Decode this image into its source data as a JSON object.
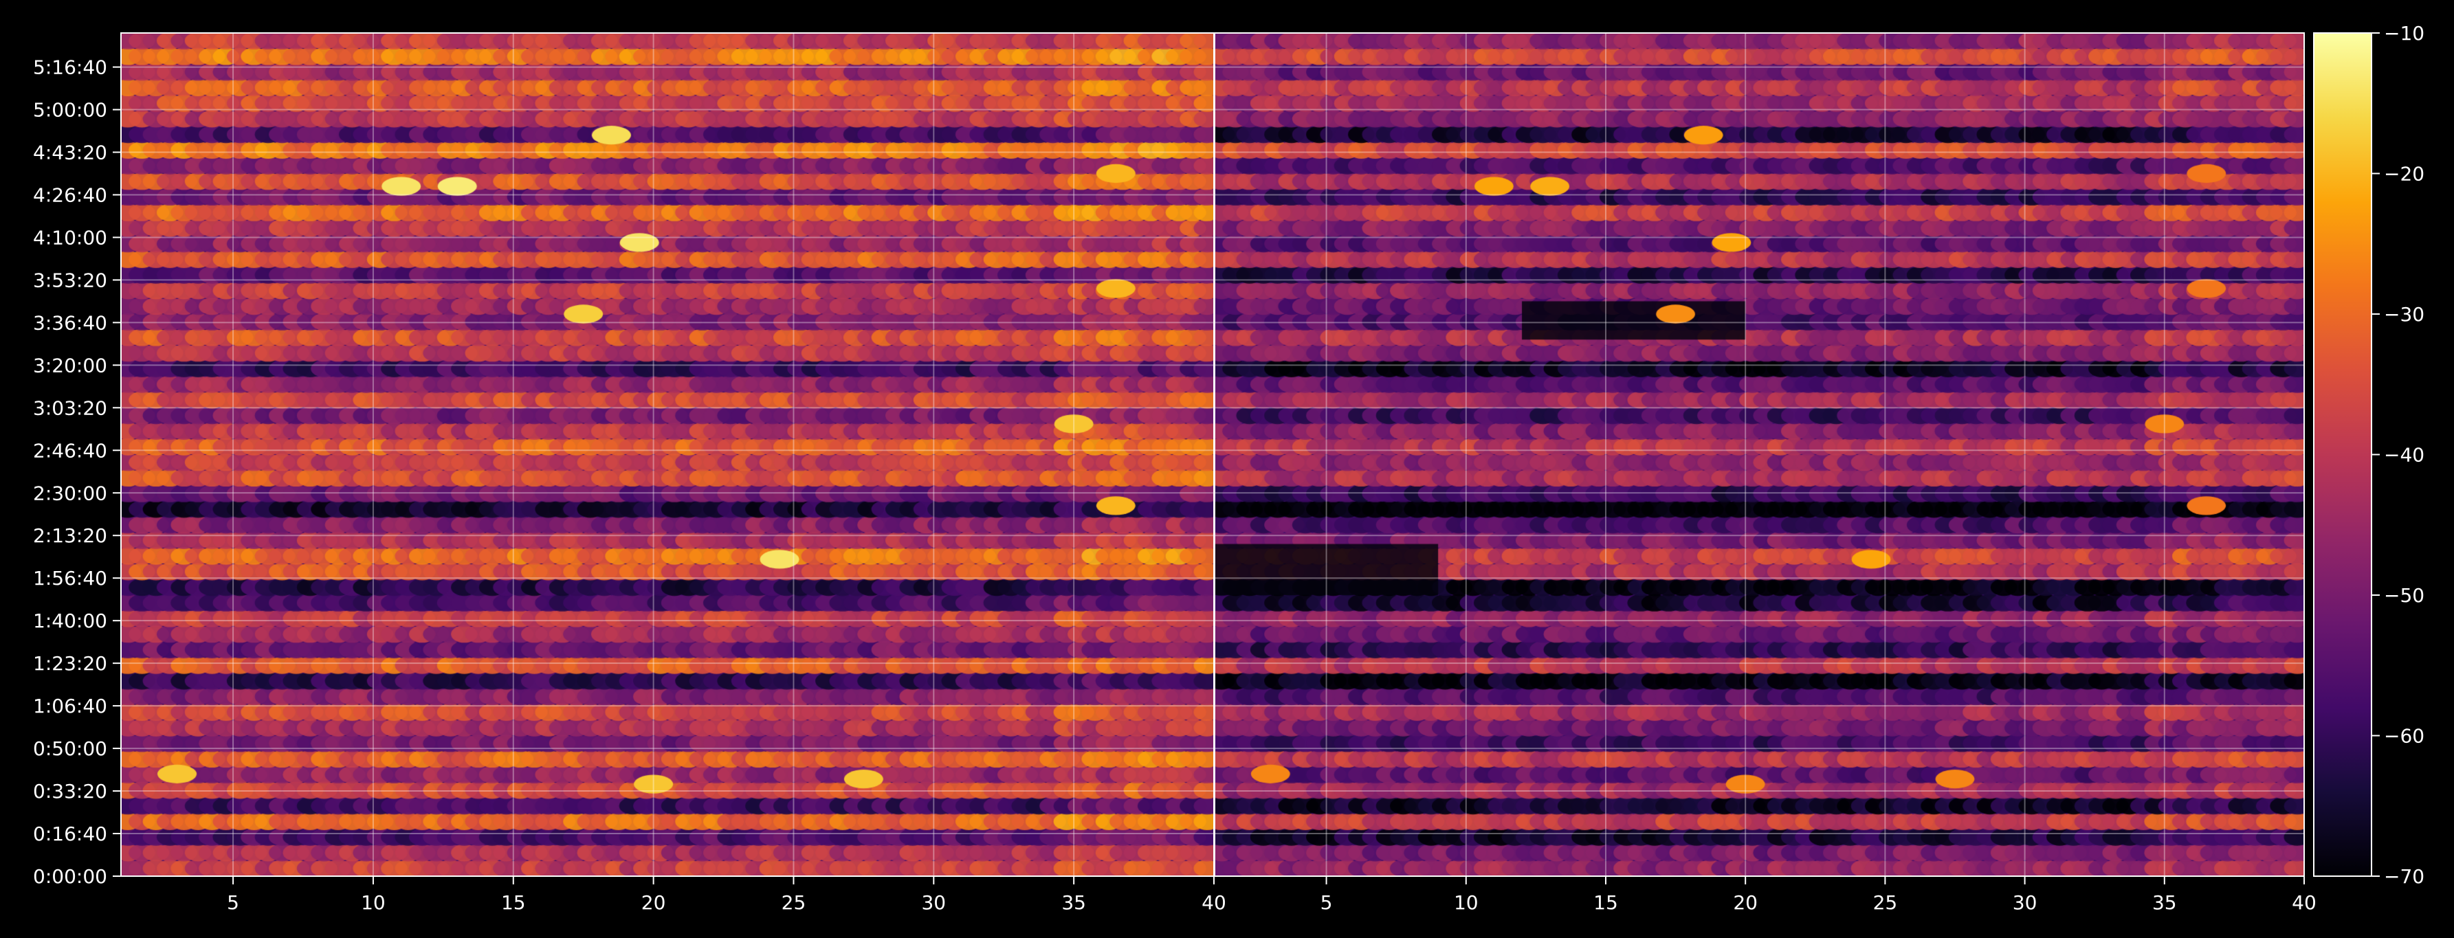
{
  "chart_data": [
    {
      "type": "heatmap",
      "panel": "left",
      "title": "",
      "xlabel": "",
      "ylabel": "",
      "xlim": [
        1,
        40
      ],
      "xticks": [
        "5",
        "10",
        "15",
        "20",
        "25",
        "30",
        "35",
        "40"
      ],
      "ylim_seconds": [
        0,
        19800
      ],
      "yticks": [
        "0:00:00",
        "0:16:40",
        "0:33:20",
        "0:50:00",
        "1:06:40",
        "1:23:20",
        "1:40:00",
        "1:56:40",
        "2:13:20",
        "2:30:00",
        "2:46:40",
        "3:03:20",
        "3:20:00",
        "3:36:40",
        "3:53:20",
        "4:10:00",
        "4:26:40",
        "4:43:20",
        "5:00:00",
        "5:16:40"
      ],
      "grid": true,
      "colormap": "inferno",
      "row_levels": [
        -38,
        -42,
        -56,
        -30,
        -58,
        -36,
        -46,
        -32,
        -50,
        -42,
        -36,
        -48,
        -60,
        -32,
        -52,
        -44,
        -38,
        -56,
        -62,
        -34,
        -30,
        -42,
        -48,
        -64,
        -52,
        -34,
        -38,
        -32,
        -40,
        -50,
        -36,
        -46,
        -58,
        -40,
        -34,
        -48,
        -44,
        -38,
        -54,
        -32,
        -46,
        -40,
        -30,
        -52,
        -34,
        -48,
        -28,
        -56,
        -40,
        -36,
        -32,
        -44,
        -28,
        -38
      ],
      "hot_spots": [
        {
          "x": 13,
          "time": "4:30:00",
          "value": -13
        },
        {
          "x": 11,
          "time": "4:30:00",
          "value": -14
        },
        {
          "x": 19.5,
          "time": "4:08:00",
          "value": -14
        },
        {
          "x": 24.5,
          "time": "2:04:00",
          "value": -14
        },
        {
          "x": 18.5,
          "time": "4:50:00",
          "value": -15
        },
        {
          "x": 17.5,
          "time": "3:40:00",
          "value": -17
        },
        {
          "x": 36.5,
          "time": "4:35:00",
          "value": -20
        },
        {
          "x": 36.5,
          "time": "3:50:00",
          "value": -20
        },
        {
          "x": 36.5,
          "time": "2:25:00",
          "value": -20
        },
        {
          "x": 35,
          "time": "2:57:00",
          "value": -18
        },
        {
          "x": 20,
          "time": "0:36:00",
          "value": -18
        },
        {
          "x": 27.5,
          "time": "0:38:00",
          "value": -18
        },
        {
          "x": 3,
          "time": "0:40:00",
          "value": -18
        }
      ]
    },
    {
      "type": "heatmap",
      "panel": "right",
      "title": "",
      "xlabel": "",
      "ylabel": "",
      "xlim": [
        1,
        40
      ],
      "xticks": [
        "5",
        "10",
        "15",
        "20",
        "25",
        "30",
        "35",
        "40"
      ],
      "ylim_seconds": [
        0,
        19800
      ],
      "grid": true,
      "colormap": "inferno",
      "offset_vs_left": -8,
      "note_cold_regions": [
        {
          "x_range": [
            1,
            9
          ],
          "time_range": [
            "1:50:00",
            "2:10:00"
          ]
        },
        {
          "x_range": [
            12,
            20
          ],
          "time_range": [
            "3:30:00",
            "3:45:00"
          ]
        }
      ]
    }
  ],
  "colorbar": {
    "min": -70,
    "max": -10,
    "ticks": [
      "−10",
      "−20",
      "−30",
      "−40",
      "−50",
      "−60",
      "−70"
    ],
    "colormap": "inferno"
  },
  "colors": {
    "background": "#000000",
    "grid": "#ffffff",
    "axis": "#ffffff",
    "text": "#ffffff"
  }
}
